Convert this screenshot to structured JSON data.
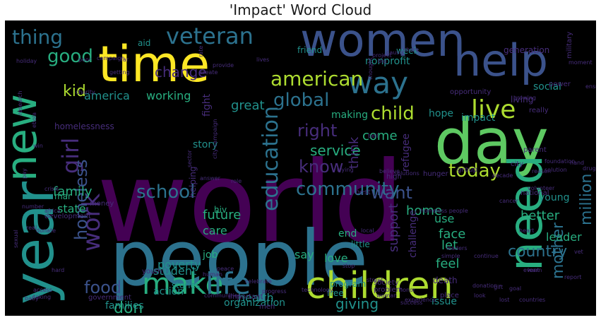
{
  "title": "'Impact' Word Cloud",
  "colors": {
    "purple": "#440154",
    "indigo": "#472d7b",
    "slate": "#3b528b",
    "steel": "#2c728e",
    "teal": "#21918c",
    "sea": "#28ae80",
    "green": "#5ec962",
    "lime": "#addc30",
    "yellow": "#fde725"
  },
  "words": [
    {
      "text": "world",
      "color": "purple"
    },
    {
      "text": "people",
      "color": "steel"
    },
    {
      "text": "day",
      "color": "green"
    },
    {
      "text": "time",
      "color": "yellow"
    },
    {
      "text": "women",
      "color": "slate"
    },
    {
      "text": "help",
      "color": "slate"
    },
    {
      "text": "year",
      "color": "teal"
    },
    {
      "text": "new",
      "color": "sea"
    },
    {
      "text": "need",
      "color": "sea"
    },
    {
      "text": "children",
      "color": "lime"
    },
    {
      "text": "make",
      "color": "sea"
    },
    {
      "text": "life",
      "color": "steel"
    },
    {
      "text": "veteran",
      "color": "steel"
    },
    {
      "text": "way",
      "color": "steel"
    },
    {
      "text": "live",
      "color": "lime"
    },
    {
      "text": "american",
      "color": "lime"
    },
    {
      "text": "girl",
      "color": "indigo"
    },
    {
      "text": "work",
      "color": "indigo"
    },
    {
      "text": "education",
      "color": "steel"
    },
    {
      "text": "thing",
      "color": "steel"
    },
    {
      "text": "good",
      "color": "sea"
    },
    {
      "text": "global",
      "color": "steel"
    },
    {
      "text": "child",
      "color": "lime"
    },
    {
      "text": "community",
      "color": "steel"
    },
    {
      "text": "school",
      "color": "steel"
    },
    {
      "text": "homeless",
      "color": "slate"
    },
    {
      "text": "food",
      "color": "slate"
    },
    {
      "text": "today",
      "color": "lime"
    },
    {
      "text": "want",
      "color": "slate"
    },
    {
      "text": "right",
      "color": "indigo"
    },
    {
      "text": "know",
      "color": "indigo"
    },
    {
      "text": "million",
      "color": "steel"
    },
    {
      "text": "mother",
      "color": "steel"
    },
    {
      "text": "country",
      "color": "steel"
    },
    {
      "text": "kid",
      "color": "lime"
    },
    {
      "text": "change",
      "color": "indigo"
    },
    {
      "text": "don",
      "color": "sea"
    },
    {
      "text": "service",
      "color": "sea"
    },
    {
      "text": "family",
      "color": "sea"
    },
    {
      "text": "america",
      "color": "teal"
    },
    {
      "text": "support",
      "color": "indigo"
    },
    {
      "text": "home",
      "color": "sea"
    },
    {
      "text": "think",
      "color": "indigo"
    },
    {
      "text": "come",
      "color": "sea"
    },
    {
      "text": "working",
      "color": "sea"
    },
    {
      "text": "families",
      "color": "teal"
    },
    {
      "text": "future",
      "color": "sea"
    },
    {
      "text": "care",
      "color": "sea"
    },
    {
      "text": "state",
      "color": "sea"
    },
    {
      "text": "leader",
      "color": "sea"
    },
    {
      "text": "better",
      "color": "sea"
    },
    {
      "text": "health",
      "color": "teal"
    },
    {
      "text": "organization",
      "color": "teal"
    },
    {
      "text": "poverty",
      "color": "teal"
    },
    {
      "text": "student",
      "color": "teal"
    },
    {
      "text": "giving",
      "color": "teal"
    },
    {
      "text": "feel",
      "color": "sea"
    },
    {
      "text": "challenge",
      "color": "indigo"
    },
    {
      "text": "face",
      "color": "sea"
    },
    {
      "text": "let",
      "color": "sea"
    },
    {
      "text": "say",
      "color": "sea"
    },
    {
      "text": "love",
      "color": "sea"
    },
    {
      "text": "job",
      "color": "sea"
    },
    {
      "text": "action",
      "color": "teal"
    },
    {
      "text": "use",
      "color": "sea"
    },
    {
      "text": "end",
      "color": "sea"
    },
    {
      "text": "hope",
      "color": "teal"
    },
    {
      "text": "impact",
      "color": "teal"
    },
    {
      "text": "making",
      "color": "sea"
    },
    {
      "text": "great",
      "color": "teal"
    },
    {
      "text": "story",
      "color": "teal"
    },
    {
      "text": "week",
      "color": "teal"
    },
    {
      "text": "nonprofit",
      "color": "teal"
    },
    {
      "text": "social",
      "color": "teal"
    },
    {
      "text": "refugee",
      "color": "indigo"
    },
    {
      "text": "young",
      "color": "teal"
    },
    {
      "text": "issue",
      "color": "teal"
    },
    {
      "text": "program",
      "color": "teal"
    },
    {
      "text": "little",
      "color": "teal"
    },
    {
      "text": "helping",
      "color": "indigo"
    },
    {
      "text": "stories",
      "color": "teal"
    },
    {
      "text": "free",
      "color": "teal"
    },
    {
      "text": "hiv",
      "color": "sea"
    },
    {
      "text": "friend",
      "color": "teal"
    },
    {
      "text": "aid",
      "color": "teal"
    },
    {
      "text": "fight",
      "color": "indigo"
    },
    {
      "text": "homelessness",
      "color": "indigo"
    },
    {
      "text": "mar",
      "color": "sea"
    },
    {
      "text": "youth",
      "color": "indigo"
    },
    {
      "text": "government",
      "color": "indigo"
    },
    {
      "text": "hunger",
      "color": "indigo"
    },
    {
      "text": "money",
      "color": "indigo"
    },
    {
      "text": "death",
      "color": "indigo"
    },
    {
      "text": "opportunity",
      "color": "indigo"
    },
    {
      "text": "living",
      "color": "indigo"
    },
    {
      "text": "really",
      "color": "indigo"
    },
    {
      "text": "national",
      "color": "indigo"
    },
    {
      "text": "parent",
      "color": "indigo"
    },
    {
      "text": "power",
      "color": "indigo"
    },
    {
      "text": "generation",
      "color": "indigo"
    },
    {
      "text": "military",
      "color": "indigo"
    },
    {
      "text": "problem",
      "color": "indigo"
    },
    {
      "text": "important",
      "color": "indigo"
    },
    {
      "text": "group",
      "color": "indigo"
    },
    {
      "text": "city",
      "color": "indigo"
    },
    {
      "text": "men",
      "color": "indigo"
    },
    {
      "text": "place",
      "color": "indigo"
    },
    {
      "text": "development",
      "color": "indigo"
    },
    {
      "text": "society",
      "color": "indigo"
    },
    {
      "text": "best",
      "color": "indigo"
    },
    {
      "text": "high",
      "color": "indigo"
    },
    {
      "text": "donate",
      "color": "indigo"
    },
    {
      "text": "communities",
      "color": "indigo"
    },
    {
      "text": "experience",
      "color": "indigo"
    },
    {
      "text": "countries",
      "color": "indigo"
    },
    {
      "text": "cancer",
      "color": "indigo"
    },
    {
      "text": "woman",
      "color": "indigo"
    },
    {
      "text": "street",
      "color": "indigo"
    },
    {
      "text": "local",
      "color": "indigo"
    },
    {
      "text": "believe",
      "color": "indigo"
    },
    {
      "text": "decade",
      "color": "indigo"
    },
    {
      "text": "reason",
      "color": "indigo"
    },
    {
      "text": "heart",
      "color": "indigo"
    },
    {
      "text": "learn",
      "color": "indigo"
    },
    {
      "text": "report",
      "color": "indigo"
    },
    {
      "text": "crisis",
      "color": "indigo"
    },
    {
      "text": "peace",
      "color": "indigo"
    },
    {
      "text": "human",
      "color": "indigo"
    },
    {
      "text": "stop",
      "color": "indigo"
    },
    {
      "text": "thought",
      "color": "indigo"
    },
    {
      "text": "number",
      "color": "indigo"
    },
    {
      "text": "share",
      "color": "indigo"
    },
    {
      "text": "getting",
      "color": "indigo"
    },
    {
      "text": "create",
      "color": "indigo"
    },
    {
      "text": "holiday",
      "color": "indigo"
    },
    {
      "text": "ebola",
      "color": "indigo"
    },
    {
      "text": "africa",
      "color": "indigo"
    },
    {
      "text": "real",
      "color": "indigo"
    },
    {
      "text": "hard",
      "color": "indigo"
    },
    {
      "text": "taking",
      "color": "indigo"
    },
    {
      "text": "solution",
      "color": "indigo"
    },
    {
      "text": "honor",
      "color": "indigo"
    },
    {
      "text": "simple",
      "color": "indigo"
    },
    {
      "text": "continue",
      "color": "indigo"
    },
    {
      "text": "gift",
      "color": "indigo"
    },
    {
      "text": "lost",
      "color": "indigo"
    },
    {
      "text": "look",
      "color": "indigo"
    },
    {
      "text": "technology",
      "color": "indigo"
    },
    {
      "text": "celebrate",
      "color": "indigo"
    },
    {
      "text": "progress",
      "color": "indigo"
    },
    {
      "text": "goal",
      "color": "indigo"
    },
    {
      "text": "event",
      "color": "indigo"
    },
    {
      "text": "cause",
      "color": "indigo"
    },
    {
      "text": "big",
      "color": "indigo"
    },
    {
      "text": "campaign",
      "color": "indigo"
    },
    {
      "text": "charity",
      "color": "indigo"
    },
    {
      "text": "baby",
      "color": "indigo"
    },
    {
      "text": "access",
      "color": "indigo"
    },
    {
      "text": "volunteer",
      "color": "indigo"
    },
    {
      "text": "foundation",
      "color": "indigo"
    },
    {
      "text": "moment",
      "color": "indigo"
    },
    {
      "text": "ensure",
      "color": "indigo"
    },
    {
      "text": "drug",
      "color": "indigo"
    },
    {
      "text": "vet",
      "color": "indigo"
    },
    {
      "text": "growing",
      "color": "indigo"
    },
    {
      "text": "project",
      "color": "indigo"
    },
    {
      "text": "rate",
      "color": "indigo"
    },
    {
      "text": "provide",
      "color": "indigo"
    },
    {
      "text": "lives",
      "color": "indigo"
    },
    {
      "text": "poor",
      "color": "indigo"
    },
    {
      "text": "far",
      "color": "indigo"
    },
    {
      "text": "research",
      "color": "indigo"
    },
    {
      "text": "pay",
      "color": "indigo"
    },
    {
      "text": "win",
      "color": "indigo"
    },
    {
      "text": "sexual",
      "color": "indigo"
    },
    {
      "text": "role",
      "color": "indigo"
    },
    {
      "text": "trying",
      "color": "indigo"
    },
    {
      "text": "answer",
      "color": "indigo"
    },
    {
      "text": "sector",
      "color": "indigo"
    },
    {
      "text": "success",
      "color": "indigo"
    },
    {
      "text": "hand",
      "color": "indigo"
    },
    {
      "text": "city campaign",
      "color": "indigo"
    },
    {
      "text": "bell",
      "color": "indigo"
    },
    {
      "text": "solutions",
      "color": "indigo"
    },
    {
      "text": "homeless people",
      "color": "indigo"
    },
    {
      "text": "leaders",
      "color": "indigo"
    },
    {
      "text": "donation",
      "color": "indigo"
    }
  ]
}
